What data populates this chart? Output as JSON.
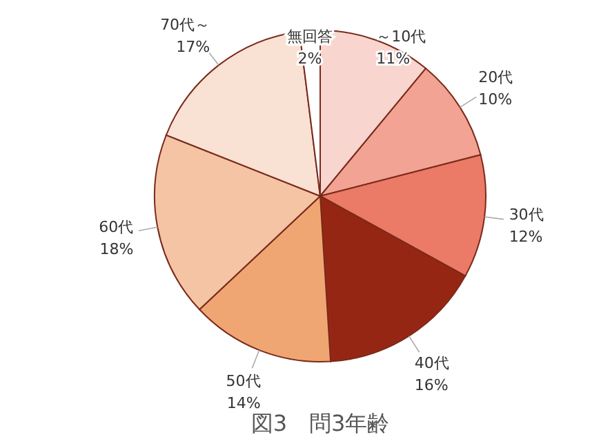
{
  "chart_data": {
    "type": "pie",
    "title": "図3　問3年齢",
    "categories": [
      "～10代",
      "20代",
      "30代",
      "40代",
      "50代",
      "60代",
      "70代～",
      "無回答"
    ],
    "values": [
      11,
      10,
      12,
      16,
      14,
      18,
      17,
      2
    ],
    "value_labels": [
      "11%",
      "10%",
      "12%",
      "16%",
      "14%",
      "18%",
      "17%",
      "2%"
    ],
    "colors": [
      "#f8d5cf",
      "#f2a393",
      "#eb7a67",
      "#962614",
      "#f0a673",
      "#f4c4a4",
      "#f9e1d4",
      "#ffffff"
    ]
  }
}
